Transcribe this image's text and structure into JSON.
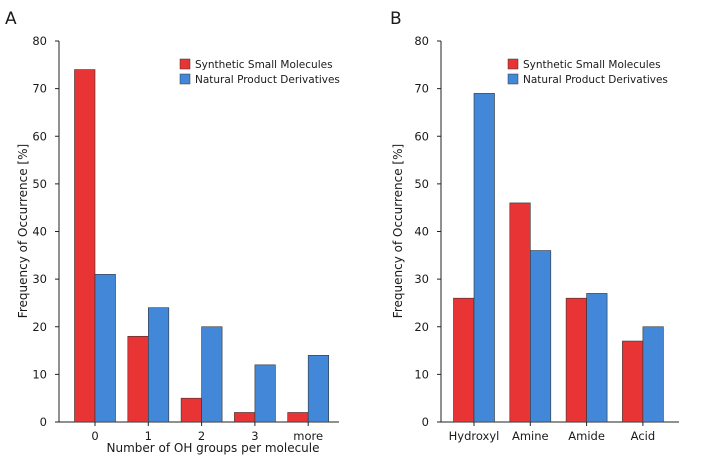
{
  "colors": {
    "synthetic": "#e83434",
    "natural": "#4388d8",
    "axis": "#222222"
  },
  "chart_data": [
    {
      "type": "bar",
      "panel_label": "A",
      "title": "",
      "xlabel": "Number of OH groups per molecule",
      "ylabel": "Frequency of Occurrence [%]",
      "ylim": [
        0,
        80
      ],
      "yticks": [
        0,
        10,
        20,
        30,
        40,
        50,
        60,
        70,
        80
      ],
      "categories": [
        "0",
        "1",
        "2",
        "3",
        "more"
      ],
      "series": [
        {
          "name": "Synthetic Small Molecules",
          "color_key": "synthetic",
          "values": [
            74,
            18,
            5,
            2,
            2
          ]
        },
        {
          "name": "Natural Product Derivatives",
          "color_key": "natural",
          "values": [
            31,
            24,
            20,
            12,
            14
          ]
        }
      ],
      "legend_position": "top-right",
      "grid": false
    },
    {
      "type": "bar",
      "panel_label": "B",
      "title": "",
      "xlabel": "",
      "ylabel": "Frequency of Occurrence [%]",
      "ylim": [
        0,
        80
      ],
      "yticks": [
        0,
        10,
        20,
        30,
        40,
        50,
        60,
        70,
        80
      ],
      "categories": [
        "Hydroxyl",
        "Amine",
        "Amide",
        "Acid"
      ],
      "series": [
        {
          "name": "Synthetic Small Molecules",
          "color_key": "synthetic",
          "values": [
            26,
            46,
            26,
            17
          ]
        },
        {
          "name": "Natural Product Derivatives",
          "color_key": "natural",
          "values": [
            69,
            36,
            27,
            20
          ]
        }
      ],
      "legend_position": "top-right",
      "grid": false
    }
  ]
}
